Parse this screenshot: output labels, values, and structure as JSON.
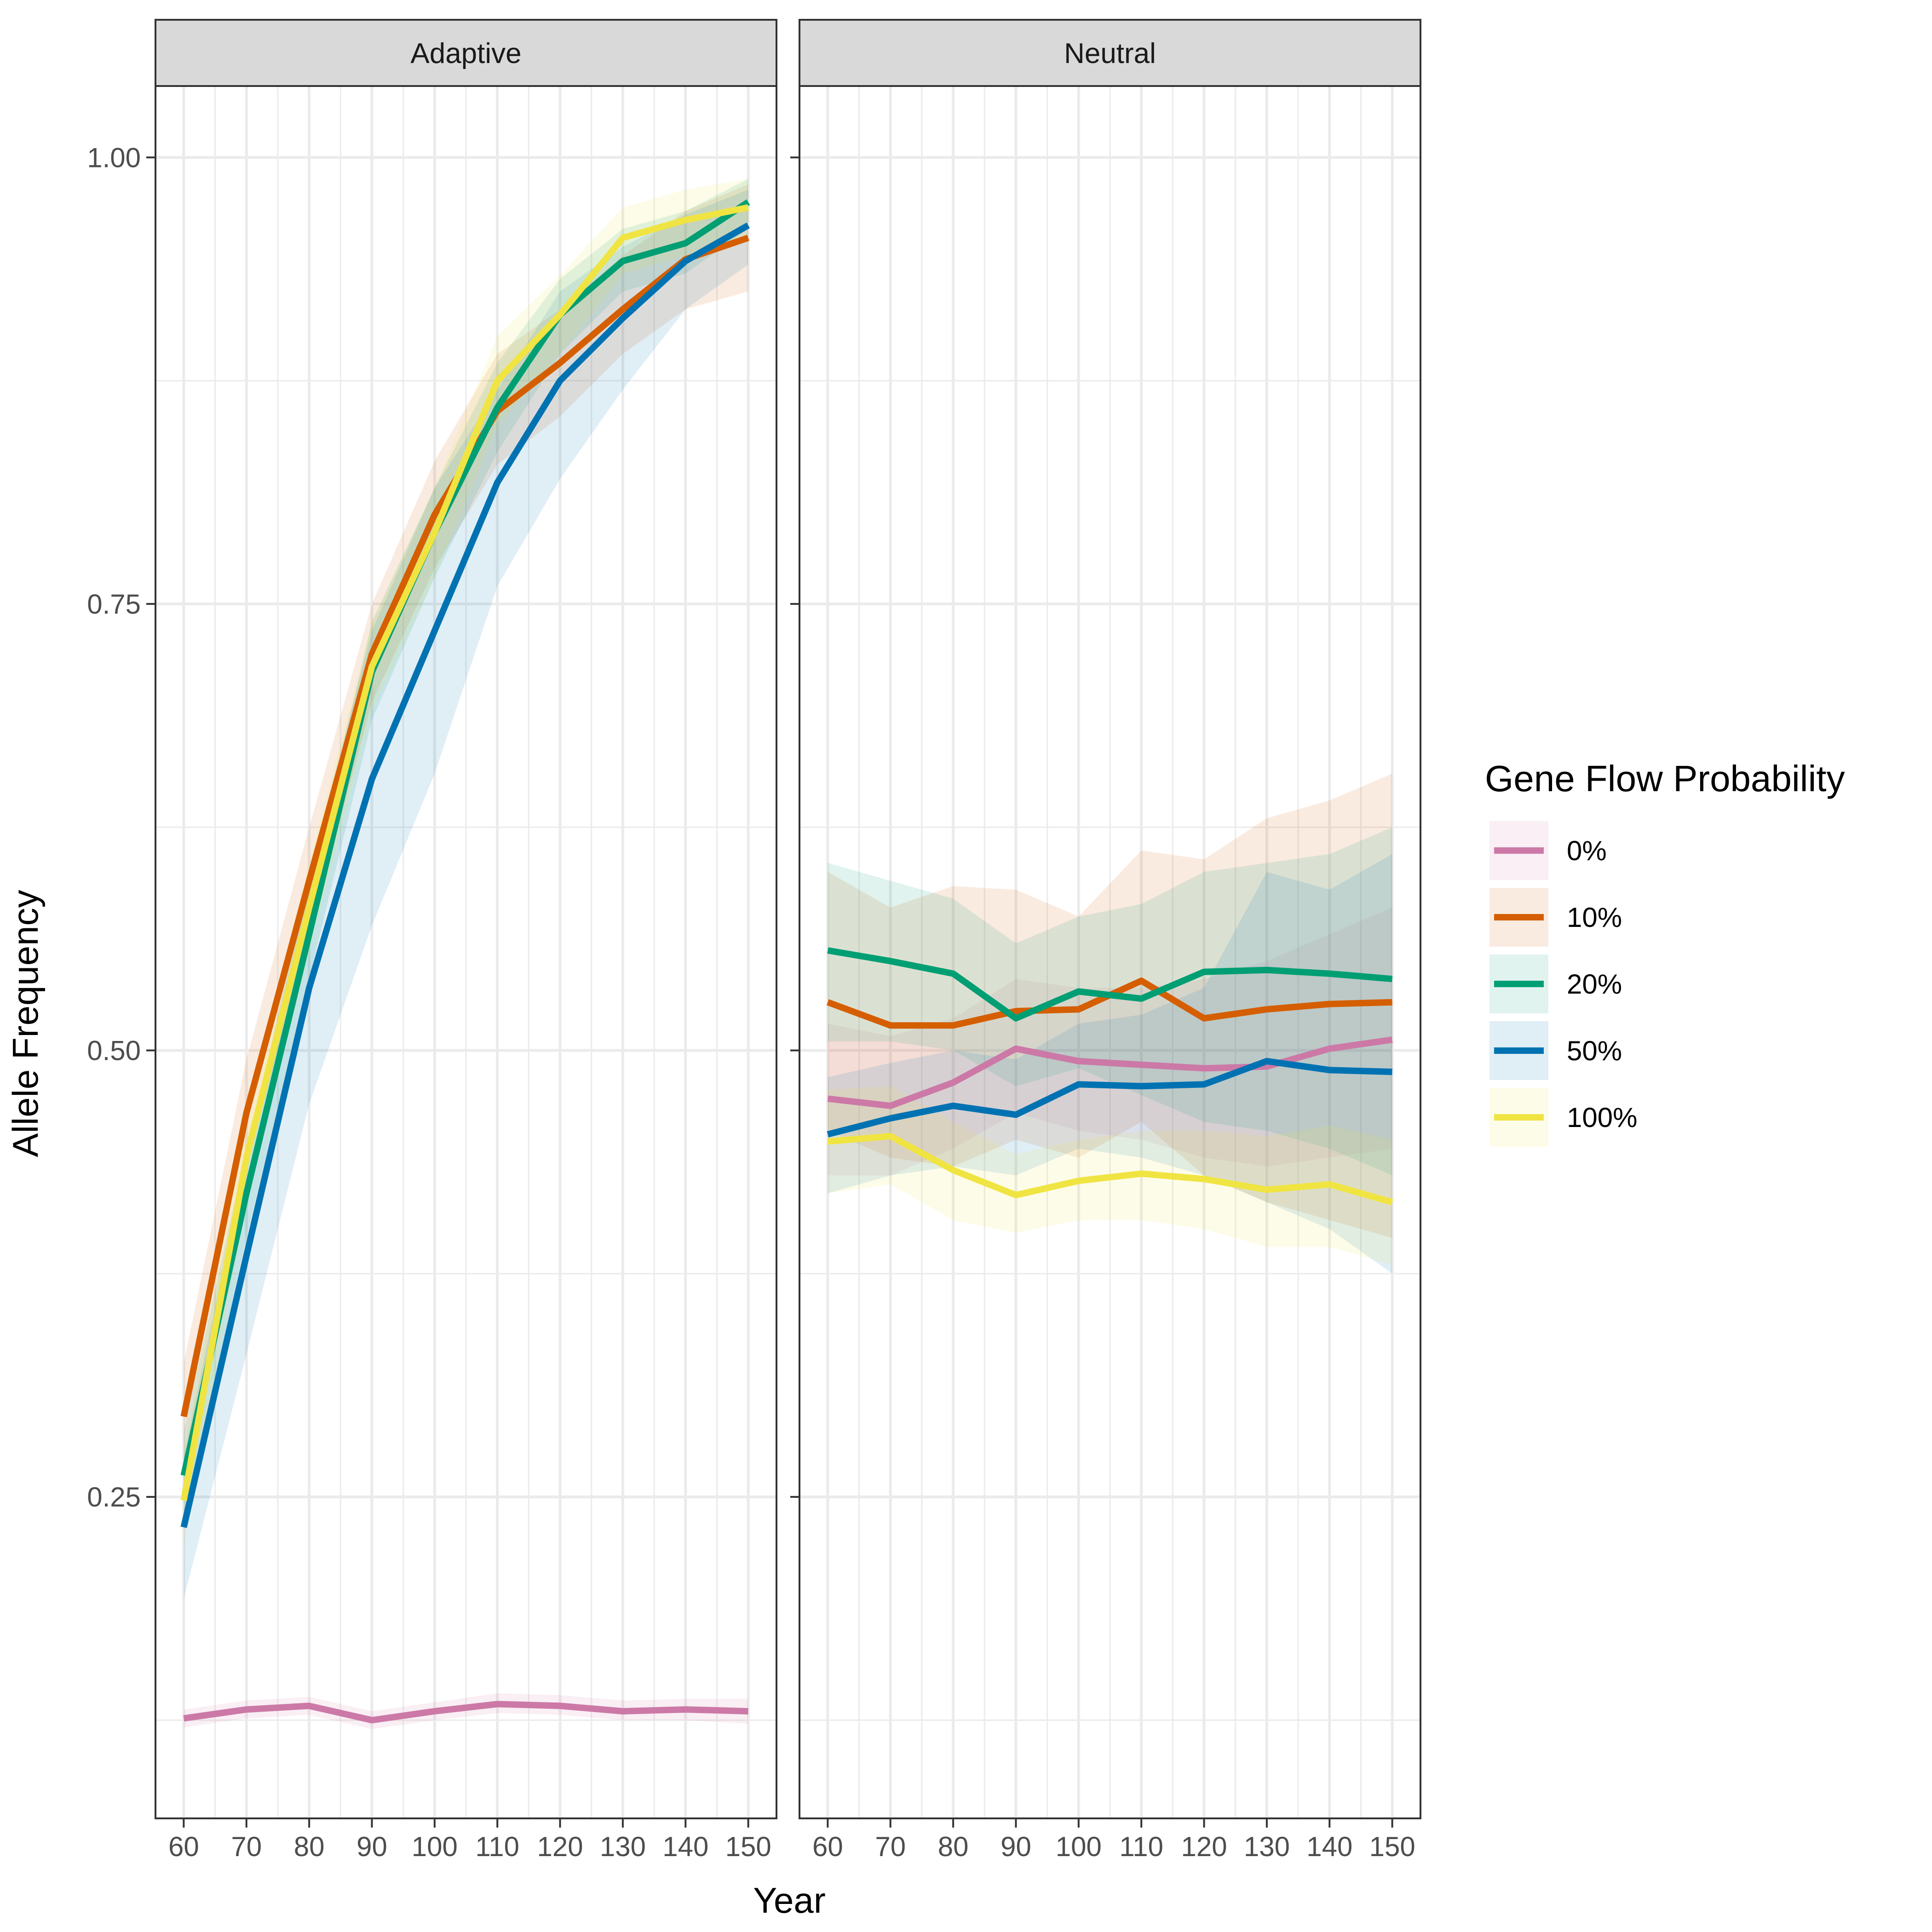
{
  "chart_data": {
    "type": "line",
    "xlabel": "Year",
    "ylabel": "Allele Frequency",
    "x": [
      60,
      70,
      80,
      90,
      100,
      110,
      120,
      130,
      140,
      150
    ],
    "xlim": [
      55.5,
      154.5
    ],
    "ylim": [
      0.07,
      1.04
    ],
    "x_ticks": [
      60,
      70,
      80,
      90,
      100,
      110,
      120,
      130,
      140,
      150
    ],
    "y_ticks": [
      0.25,
      0.5,
      0.75,
      1.0
    ],
    "y_tick_labels": [
      "0.25",
      "0.50",
      "0.75",
      "1.00"
    ],
    "grid": true,
    "legend": {
      "title": "Gene Flow Probability",
      "position": "right",
      "entries": [
        "0%",
        "10%",
        "20%",
        "50%",
        "100%"
      ]
    },
    "colors": {
      "0%": "#CC79A7",
      "10%": "#D55E00",
      "20%": "#009E73",
      "50%": "#0072B2",
      "100%": "#F0E442"
    },
    "panels": [
      {
        "label": "Adaptive",
        "series": [
          {
            "name": "0%",
            "values": [
              0.126,
              0.131,
              0.133,
              0.125,
              0.13,
              0.134,
              0.133,
              0.13,
              0.131,
              0.13
            ],
            "lower": [
              0.121,
              0.126,
              0.128,
              0.12,
              0.125,
              0.129,
              0.128,
              0.125,
              0.125,
              0.123
            ],
            "upper": [
              0.131,
              0.136,
              0.138,
              0.13,
              0.135,
              0.14,
              0.139,
              0.136,
              0.137,
              0.137
            ]
          },
          {
            "name": "10%",
            "values": [
              0.295,
              0.465,
              0.595,
              0.722,
              0.8,
              0.858,
              0.885,
              0.915,
              0.943,
              0.955
            ],
            "lower": [
              0.265,
              0.435,
              0.565,
              0.695,
              0.77,
              0.828,
              0.855,
              0.89,
              0.915,
              0.925
            ],
            "upper": [
              0.325,
              0.495,
              0.625,
              0.75,
              0.83,
              0.89,
              0.915,
              0.945,
              0.97,
              0.985
            ]
          },
          {
            "name": "20%",
            "values": [
              0.262,
              0.42,
              0.565,
              0.712,
              0.79,
              0.86,
              0.912,
              0.942,
              0.952,
              0.975
            ],
            "lower": [
              0.237,
              0.395,
              0.54,
              0.685,
              0.765,
              0.835,
              0.89,
              0.925,
              0.935,
              0.96
            ],
            "upper": [
              0.287,
              0.445,
              0.59,
              0.74,
              0.815,
              0.885,
              0.932,
              0.96,
              0.97,
              0.988
            ]
          },
          {
            "name": "50%",
            "values": [
              0.233,
              0.385,
              0.535,
              0.652,
              0.735,
              0.818,
              0.875,
              0.91,
              0.942,
              0.962
            ],
            "lower": [
              0.193,
              0.33,
              0.47,
              0.57,
              0.655,
              0.76,
              0.82,
              0.87,
              0.915,
              0.94
            ],
            "upper": [
              0.273,
              0.44,
              0.6,
              0.735,
              0.815,
              0.87,
              0.925,
              0.95,
              0.968,
              0.982
            ]
          },
          {
            "name": "100%",
            "values": [
              0.248,
              0.44,
              0.58,
              0.715,
              0.79,
              0.875,
              0.912,
              0.955,
              0.965,
              0.972
            ],
            "lower": [
              0.223,
              0.415,
              0.555,
              0.69,
              0.765,
              0.85,
              0.89,
              0.935,
              0.945,
              0.955
            ],
            "upper": [
              0.273,
              0.465,
              0.605,
              0.74,
              0.815,
              0.9,
              0.934,
              0.972,
              0.982,
              0.988
            ]
          }
        ]
      },
      {
        "label": "Neutral",
        "series": [
          {
            "name": "0%",
            "values": [
              0.473,
              0.469,
              0.482,
              0.501,
              0.494,
              0.492,
              0.49,
              0.491,
              0.501,
              0.506
            ],
            "lower": [
              0.43,
              0.43,
              0.445,
              0.465,
              0.455,
              0.45,
              0.44,
              0.435,
              0.44,
              0.445
            ],
            "upper": [
              0.515,
              0.508,
              0.518,
              0.54,
              0.535,
              0.535,
              0.54,
              0.55,
              0.565,
              0.58
            ]
          },
          {
            "name": "10%",
            "values": [
              0.527,
              0.514,
              0.514,
              0.522,
              0.523,
              0.539,
              0.518,
              0.523,
              0.526,
              0.527
            ],
            "lower": [
              0.455,
              0.44,
              0.435,
              0.45,
              0.44,
              0.46,
              0.43,
              0.415,
              0.405,
              0.395
            ],
            "upper": [
              0.6,
              0.58,
              0.592,
              0.59,
              0.575,
              0.612,
              0.607,
              0.63,
              0.64,
              0.655
            ]
          },
          {
            "name": "20%",
            "values": [
              0.556,
              0.55,
              0.543,
              0.518,
              0.533,
              0.529,
              0.544,
              0.545,
              0.543,
              0.54
            ],
            "lower": [
              0.505,
              0.505,
              0.5,
              0.48,
              0.49,
              0.475,
              0.46,
              0.455,
              0.445,
              0.43
            ],
            "upper": [
              0.605,
              0.595,
              0.585,
              0.56,
              0.575,
              0.582,
              0.6,
              0.605,
              0.61,
              0.625
            ]
          },
          {
            "name": "50%",
            "values": [
              0.453,
              0.462,
              0.469,
              0.464,
              0.481,
              0.48,
              0.481,
              0.494,
              0.489,
              0.488
            ],
            "lower": [
              0.42,
              0.43,
              0.435,
              0.43,
              0.445,
              0.44,
              0.43,
              0.415,
              0.4,
              0.375
            ],
            "upper": [
              0.485,
              0.493,
              0.5,
              0.495,
              0.515,
              0.52,
              0.535,
              0.6,
              0.59,
              0.61
            ]
          },
          {
            "name": "100%",
            "values": [
              0.449,
              0.452,
              0.433,
              0.419,
              0.427,
              0.431,
              0.428,
              0.422,
              0.425,
              0.415
            ],
            "lower": [
              0.42,
              0.425,
              0.405,
              0.398,
              0.405,
              0.405,
              0.4,
              0.39,
              0.39,
              0.38
            ],
            "upper": [
              0.478,
              0.48,
              0.46,
              0.442,
              0.45,
              0.455,
              0.455,
              0.452,
              0.458,
              0.45
            ]
          }
        ]
      }
    ]
  }
}
